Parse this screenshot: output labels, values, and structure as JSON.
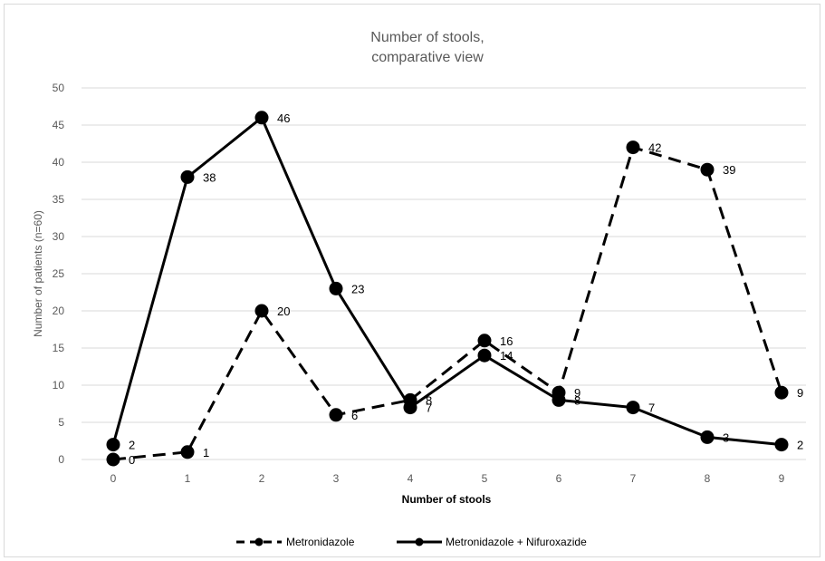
{
  "chart_data": {
    "type": "line",
    "title_lines": [
      "Number of stools,",
      "comparative view"
    ],
    "xlabel": "Number of stools",
    "ylabel": "Number of patients (n=60)",
    "x": [
      0,
      1,
      2,
      3,
      4,
      5,
      6,
      7,
      8,
      9
    ],
    "ylim": [
      0,
      50
    ],
    "yticks": [
      0,
      5,
      10,
      15,
      20,
      25,
      30,
      35,
      40,
      45,
      50
    ],
    "grid": true,
    "legend_position": "bottom",
    "series": [
      {
        "name": "Metronidazole",
        "style": "dashed",
        "color": "#000000",
        "values": [
          0,
          1,
          20,
          6,
          8,
          16,
          9,
          42,
          39,
          9
        ]
      },
      {
        "name": "Metronidazole + Nifuroxazide",
        "style": "solid",
        "color": "#000000",
        "values": [
          2,
          38,
          46,
          23,
          7,
          14,
          8,
          7,
          3,
          2
        ]
      }
    ]
  }
}
